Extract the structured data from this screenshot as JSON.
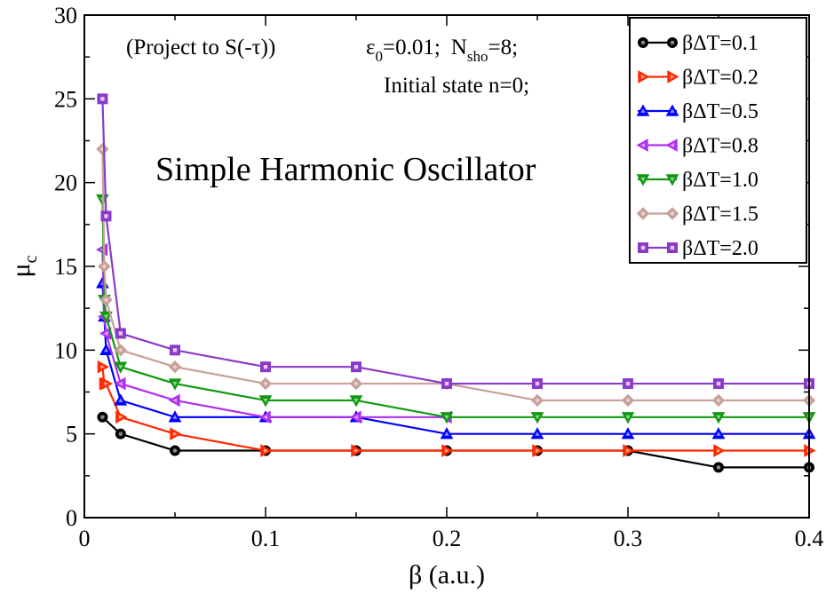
{
  "chart_data": {
    "type": "line",
    "xlabel": "β (a.u.)",
    "ylabel": "μ",
    "ylabel_sub": "c",
    "xlim": [
      0,
      0.4
    ],
    "ylim": [
      0,
      30
    ],
    "x_ticks": [
      0,
      0.1,
      0.2,
      0.3,
      0.4
    ],
    "x_tick_labels": [
      "0",
      "0.1",
      "0.2",
      "0.3",
      "0.4"
    ],
    "y_ticks": [
      0,
      5,
      10,
      15,
      20,
      25,
      30
    ],
    "y_tick_labels": [
      "0",
      "5",
      "10",
      "15",
      "20",
      "25",
      "30"
    ],
    "grid": false,
    "legend_position": "top-right",
    "annotations": {
      "projection": "(Project to S(-τ))",
      "params": {
        "eps_sym": "ε",
        "eps_sub": "0",
        "eps_val": "=0.01;",
        "n_sym": "N",
        "n_sub": "sho",
        "n_val": "=8;"
      },
      "initial_state": "Initial state n=0;",
      "system": "Simple Harmonic Oscillator"
    },
    "series": [
      {
        "name": "βΔT=0.1",
        "color": "#000000",
        "marker": "circle",
        "x": [
          0.01,
          0.02,
          0.05,
          0.1,
          0.15,
          0.2,
          0.25,
          0.3,
          0.35,
          0.4
        ],
        "y": [
          6,
          5,
          4,
          4,
          4,
          4,
          4,
          4,
          3,
          3
        ]
      },
      {
        "name": "βΔT=0.2",
        "color": "#ff2a00",
        "marker": "triangle-right",
        "x": [
          0.01,
          0.011,
          0.012,
          0.02,
          0.05,
          0.1,
          0.15,
          0.2,
          0.25,
          0.3,
          0.35,
          0.4
        ],
        "y": [
          9,
          8,
          8,
          6,
          5,
          4,
          4,
          4,
          4,
          4,
          4,
          4
        ]
      },
      {
        "name": "βΔT=0.5",
        "color": "#0000ff",
        "marker": "triangle-up",
        "x": [
          0.01,
          0.011,
          0.012,
          0.02,
          0.05,
          0.1,
          0.15,
          0.2,
          0.25,
          0.3,
          0.35,
          0.4
        ],
        "y": [
          14,
          12,
          10,
          7,
          6,
          6,
          6,
          5,
          5,
          5,
          5,
          5
        ]
      },
      {
        "name": "βΔT=0.8",
        "color": "#b030f0",
        "marker": "triangle-left",
        "x": [
          0.01,
          0.011,
          0.012,
          0.02,
          0.05,
          0.1,
          0.15,
          0.2
        ],
        "y": [
          16,
          12,
          11,
          8,
          7,
          6,
          6,
          6
        ]
      },
      {
        "name": "βΔT=1.0",
        "color": "#119911",
        "marker": "triangle-down",
        "x": [
          0.01,
          0.011,
          0.012,
          0.02,
          0.05,
          0.1,
          0.15,
          0.2,
          0.25,
          0.3,
          0.35,
          0.4
        ],
        "y": [
          19,
          13,
          12,
          9,
          8,
          7,
          7,
          6,
          6,
          6,
          6,
          6
        ]
      },
      {
        "name": "βΔT=1.5",
        "color": "#c8a09a",
        "marker": "diamond",
        "x": [
          0.01,
          0.011,
          0.012,
          0.02,
          0.05,
          0.1,
          0.15,
          0.2,
          0.25,
          0.3,
          0.35,
          0.4
        ],
        "y": [
          22,
          15,
          13,
          10,
          9,
          8,
          8,
          8,
          7,
          7,
          7,
          7
        ]
      },
      {
        "name": "βΔT=2.0",
        "color": "#8a3ac8",
        "marker": "square",
        "x": [
          0.01,
          0.012,
          0.02,
          0.05,
          0.1,
          0.15,
          0.2,
          0.25,
          0.3,
          0.35,
          0.4
        ],
        "y": [
          25,
          18,
          11,
          10,
          9,
          9,
          8,
          8,
          8,
          8,
          8
        ]
      }
    ]
  }
}
